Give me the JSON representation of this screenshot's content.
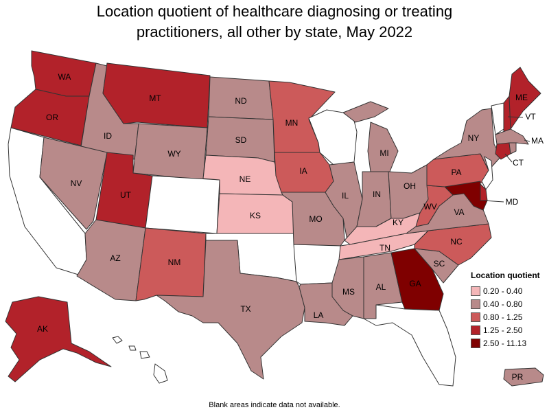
{
  "title": {
    "line1": "Location quotient of healthcare diagnosing or treating",
    "line2": "practitioners, all other by state, May 2022"
  },
  "legend": {
    "title": "Location quotient",
    "classes": [
      {
        "label": "0.20 - 0.40",
        "color": "#f4b6b8"
      },
      {
        "label": "0.40 - 0.80",
        "color": "#b88a8a"
      },
      {
        "label": "0.80 - 1.25",
        "color": "#cc5a5a"
      },
      {
        "label": "1.25 - 2.50",
        "color": "#b2222a"
      },
      {
        "label": "2.50 - 11.13",
        "color": "#7f0000"
      }
    ]
  },
  "no_data_color": "#ffffff",
  "states": [
    {
      "abbr": "WA",
      "class": 3
    },
    {
      "abbr": "OR",
      "class": 3
    },
    {
      "abbr": "CA",
      "class": null
    },
    {
      "abbr": "ID",
      "class": 1
    },
    {
      "abbr": "NV",
      "class": 1
    },
    {
      "abbr": "MT",
      "class": 3
    },
    {
      "abbr": "WY",
      "class": 1
    },
    {
      "abbr": "UT",
      "class": 3
    },
    {
      "abbr": "AZ",
      "class": 1
    },
    {
      "abbr": "CO",
      "class": null
    },
    {
      "abbr": "NM",
      "class": 2
    },
    {
      "abbr": "ND",
      "class": 1
    },
    {
      "abbr": "SD",
      "class": 1
    },
    {
      "abbr": "NE",
      "class": 0
    },
    {
      "abbr": "KS",
      "class": 0
    },
    {
      "abbr": "OK",
      "class": null
    },
    {
      "abbr": "TX",
      "class": 1
    },
    {
      "abbr": "MN",
      "class": 2
    },
    {
      "abbr": "IA",
      "class": 2
    },
    {
      "abbr": "MO",
      "class": 1
    },
    {
      "abbr": "AR",
      "class": null
    },
    {
      "abbr": "LA",
      "class": 1
    },
    {
      "abbr": "WI",
      "class": null
    },
    {
      "abbr": "IL",
      "class": 1
    },
    {
      "abbr": "MI",
      "class": 1
    },
    {
      "abbr": "IN",
      "class": 1
    },
    {
      "abbr": "OH",
      "class": 1
    },
    {
      "abbr": "KY",
      "class": 0
    },
    {
      "abbr": "TN",
      "class": 0
    },
    {
      "abbr": "MS",
      "class": 1
    },
    {
      "abbr": "AL",
      "class": 1
    },
    {
      "abbr": "GA",
      "class": 4
    },
    {
      "abbr": "FL",
      "class": null
    },
    {
      "abbr": "SC",
      "class": 1
    },
    {
      "abbr": "NC",
      "class": 2
    },
    {
      "abbr": "VA",
      "class": 1
    },
    {
      "abbr": "WV",
      "class": 2
    },
    {
      "abbr": "PA",
      "class": 2
    },
    {
      "abbr": "NY",
      "class": 1
    },
    {
      "abbr": "VT",
      "class": null
    },
    {
      "abbr": "NH",
      "class": 3
    },
    {
      "abbr": "ME",
      "class": 3
    },
    {
      "abbr": "MA",
      "class": 1
    },
    {
      "abbr": "CT",
      "class": 3
    },
    {
      "abbr": "RI",
      "class": 1
    },
    {
      "abbr": "NJ",
      "class": null
    },
    {
      "abbr": "DE",
      "class": 3
    },
    {
      "abbr": "MD",
      "class": 4
    },
    {
      "abbr": "AK",
      "class": 3
    },
    {
      "abbr": "HI",
      "class": null
    },
    {
      "abbr": "PR",
      "class": 1
    }
  ],
  "footnote": "Blank areas indicate data not available."
}
